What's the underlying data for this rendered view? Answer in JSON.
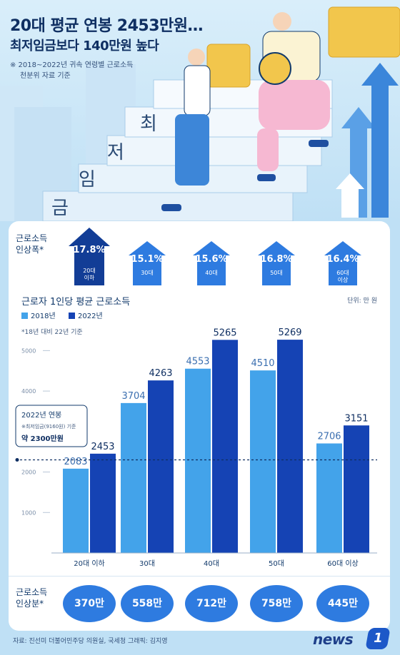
{
  "header": {
    "title": "20대 평균 연봉 2453만원…",
    "subtitle": "최저임금보다 140만원 높다",
    "note_line1": "※ 2018~2022년 귀속 연령별 근로소득",
    "note_line2": "천분위 자료 기준",
    "stair_words": [
      "최",
      "저",
      "임",
      "금"
    ]
  },
  "growth_row": {
    "label_line1": "근로소득",
    "label_line2": "인상폭*",
    "items": [
      {
        "pct": "17.8%",
        "group_line1": "20대",
        "group_line2": "이하",
        "highlight": true
      },
      {
        "pct": "15.1%",
        "group_line1": "30대",
        "group_line2": "",
        "highlight": false
      },
      {
        "pct": "15.6%",
        "group_line1": "40대",
        "group_line2": "",
        "highlight": false
      },
      {
        "pct": "16.8%",
        "group_line1": "50대",
        "group_line2": "",
        "highlight": false
      },
      {
        "pct": "16.4%",
        "group_line1": "60대",
        "group_line2": "이상",
        "highlight": false
      }
    ]
  },
  "chart_data": {
    "type": "bar",
    "title": "근로자 1인당 평균 근로소득",
    "unit": "단위: 만 원",
    "note": "*18년 대비 22년 기준",
    "categories": [
      "20대 이하",
      "30대",
      "40대",
      "50대",
      "60대 이상"
    ],
    "series": [
      {
        "name": "2018년",
        "values": [
          2083,
          3704,
          4553,
          4510,
          2706
        ],
        "color": "#43a3ea"
      },
      {
        "name": "2022년",
        "values": [
          2453,
          4263,
          5265,
          5269,
          3151
        ],
        "color": "#1543b4"
      }
    ],
    "ylim": [
      0,
      5500
    ],
    "yticks": [
      1000,
      2000,
      3000,
      4000,
      5000
    ],
    "reference_line": {
      "value": 2300,
      "label_line1": "2022년 연봉",
      "label_line2": "※최저임금(9160원) 기준",
      "label_line3": "약 2300만원"
    },
    "legend_position": "top-left",
    "grid": false
  },
  "increase_row": {
    "label_line1": "근로소득",
    "label_line2": "인상분*",
    "values": [
      "370만",
      "558만",
      "712만",
      "758만",
      "445만"
    ]
  },
  "footer": {
    "source": "자료: 진선미 더불어민주당 의원실, 국세청  그래픽: 김지영",
    "logo_text": "news",
    "logo_mark": "1"
  },
  "colors": {
    "accent_light": "#43a3ea",
    "accent_dark": "#1543b4",
    "arrow_blue": "#2e7be0",
    "arrow_navy": "#123d96"
  }
}
